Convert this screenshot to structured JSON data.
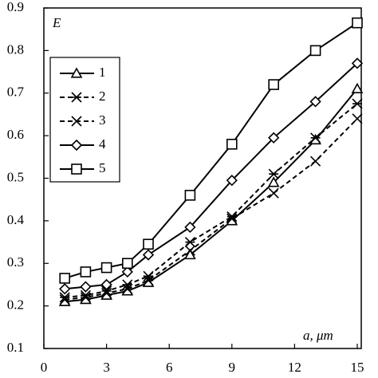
{
  "chart_data": {
    "type": "line",
    "x_label": "a, μm",
    "y_label": "E",
    "x": [
      1,
      2,
      3,
      4,
      5,
      7,
      9,
      11,
      13,
      15
    ],
    "xlim": [
      0,
      15
    ],
    "xticks": [
      0,
      3,
      6,
      9,
      12,
      15
    ],
    "ylim": [
      0.1,
      0.9
    ],
    "yticks": [
      0.1,
      0.2,
      0.3,
      0.4,
      0.5,
      0.6,
      0.7,
      0.8,
      0.9
    ],
    "legend": "upper left",
    "series": [
      {
        "name": "1",
        "color": "#000000",
        "marker": "triangle",
        "dashed": false,
        "values": [
          0.21,
          0.215,
          0.225,
          0.235,
          0.255,
          0.32,
          0.4,
          0.49,
          0.59,
          0.71
        ]
      },
      {
        "name": "2",
        "color": "#000000",
        "marker": "asterisk",
        "dashed": true,
        "values": [
          0.22,
          0.225,
          0.235,
          0.25,
          0.27,
          0.35,
          0.41,
          0.51,
          0.595,
          0.675
        ]
      },
      {
        "name": "3",
        "color": "#000000",
        "marker": "x",
        "dashed": true,
        "values": [
          0.215,
          0.22,
          0.23,
          0.24,
          0.26,
          0.33,
          0.405,
          0.465,
          0.54,
          0.64
        ]
      },
      {
        "name": "4",
        "color": "#000000",
        "marker": "diamond",
        "dashed": false,
        "values": [
          0.24,
          0.245,
          0.25,
          0.28,
          0.32,
          0.385,
          0.495,
          0.595,
          0.68,
          0.77
        ]
      },
      {
        "name": "5",
        "color": "#000000",
        "marker": "square",
        "dashed": false,
        "values": [
          0.265,
          0.28,
          0.29,
          0.3,
          0.345,
          0.46,
          0.58,
          0.72,
          0.8,
          0.865
        ]
      }
    ]
  }
}
